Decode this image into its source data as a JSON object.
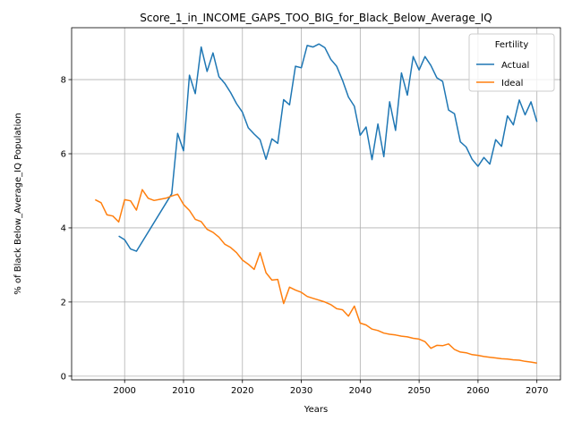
{
  "chart_data": {
    "type": "line",
    "title": "Score_1_in_INCOME_GAPS_TOO_BIG_for_Black_Below_Average_IQ",
    "xlabel": "Years",
    "ylabel": "% of Black Below_Average_IQ Population",
    "xlim": [
      1991,
      2074
    ],
    "ylim": [
      -0.1,
      9.4
    ],
    "xticks": [
      2000,
      2010,
      2020,
      2030,
      2040,
      2050,
      2060,
      2070
    ],
    "yticks": [
      0,
      2,
      4,
      6,
      8
    ],
    "grid": true,
    "legend": {
      "title": "Fertility",
      "position": "top-right"
    },
    "series": [
      {
        "name": "Actual",
        "color": "#1f77b4",
        "x": [
          1999,
          2000,
          2001,
          2002,
          2008,
          2009,
          2010,
          2011,
          2012,
          2013,
          2014,
          2015,
          2016,
          2017,
          2018,
          2019,
          2020,
          2021,
          2022,
          2023,
          2024,
          2025,
          2026,
          2027,
          2028,
          2029,
          2030,
          2031,
          2032,
          2033,
          2034,
          2035,
          2036,
          2037,
          2038,
          2039,
          2040,
          2041,
          2042,
          2043,
          2044,
          2045,
          2046,
          2047,
          2048,
          2049,
          2050,
          2051,
          2052,
          2053,
          2054,
          2055,
          2056,
          2057,
          2058,
          2059,
          2060,
          2061,
          2062,
          2063,
          2064,
          2065,
          2066,
          2067,
          2068,
          2069,
          2070
        ],
        "values": [
          3.78,
          3.68,
          3.43,
          3.37,
          4.92,
          6.55,
          6.08,
          8.12,
          7.62,
          8.88,
          8.22,
          8.72,
          8.08,
          7.9,
          7.65,
          7.35,
          7.12,
          6.7,
          6.53,
          6.38,
          5.85,
          6.4,
          6.28,
          7.46,
          7.32,
          8.36,
          8.32,
          8.92,
          8.88,
          8.96,
          8.86,
          8.55,
          8.36,
          7.98,
          7.53,
          7.28,
          6.5,
          6.72,
          5.84,
          6.8,
          5.92,
          7.4,
          6.63,
          8.18,
          7.58,
          8.62,
          8.26,
          8.62,
          8.38,
          8.05,
          7.95,
          7.18,
          7.08,
          6.32,
          6.18,
          5.85,
          5.66,
          5.9,
          5.72,
          6.38,
          6.2,
          7.02,
          6.78,
          7.45,
          7.05,
          7.4,
          6.86
        ]
      },
      {
        "name": "Ideal",
        "color": "#ff7f0e",
        "x": [
          1995,
          1996,
          1997,
          1998,
          1999,
          2000,
          2001,
          2002,
          2003,
          2004,
          2005,
          2006,
          2007,
          2008,
          2009,
          2010,
          2011,
          2012,
          2013,
          2014,
          2015,
          2016,
          2017,
          2018,
          2019,
          2020,
          2021,
          2022,
          2023,
          2024,
          2025,
          2026,
          2027,
          2028,
          2029,
          2030,
          2031,
          2032,
          2033,
          2034,
          2035,
          2036,
          2037,
          2038,
          2039,
          2040,
          2041,
          2042,
          2043,
          2044,
          2045,
          2046,
          2047,
          2048,
          2049,
          2050,
          2051,
          2052,
          2053,
          2054,
          2055,
          2056,
          2057,
          2058,
          2059,
          2060,
          2061,
          2062,
          2063,
          2064,
          2065,
          2066,
          2067,
          2068,
          2069,
          2070
        ],
        "values": [
          4.76,
          4.68,
          4.35,
          4.32,
          4.16,
          4.76,
          4.73,
          4.48,
          5.03,
          4.8,
          4.74,
          4.77,
          4.8,
          4.86,
          4.91,
          4.63,
          4.47,
          4.23,
          4.17,
          3.96,
          3.88,
          3.75,
          3.56,
          3.47,
          3.33,
          3.13,
          3.02,
          2.88,
          3.33,
          2.79,
          2.59,
          2.61,
          1.96,
          2.4,
          2.32,
          2.26,
          2.15,
          2.1,
          2.05,
          2.0,
          1.93,
          1.82,
          1.79,
          1.62,
          1.89,
          1.43,
          1.38,
          1.27,
          1.23,
          1.16,
          1.13,
          1.11,
          1.08,
          1.06,
          1.02,
          1.0,
          0.93,
          0.75,
          0.83,
          0.82,
          0.87,
          0.72,
          0.65,
          0.63,
          0.58,
          0.56,
          0.53,
          0.51,
          0.49,
          0.47,
          0.46,
          0.44,
          0.43,
          0.4,
          0.38,
          0.35
        ]
      }
    ]
  }
}
